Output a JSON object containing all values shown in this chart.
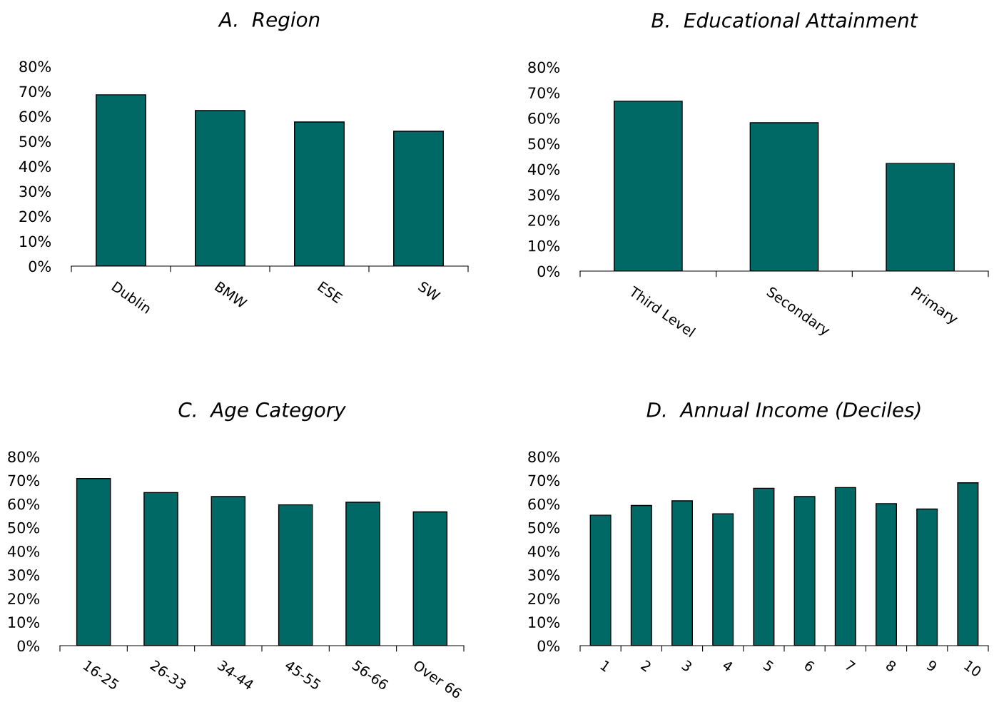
{
  "chart_data": [
    {
      "type": "bar",
      "title": "A.  Region",
      "categories": [
        "Dublin",
        "BMW",
        "ESE",
        "SW"
      ],
      "values": [
        68.6,
        62.3,
        57.7,
        54.0
      ],
      "color": "#006865",
      "ylim": [
        0,
        80
      ],
      "yticks": [
        {
          "value": 0,
          "label": "0%"
        },
        {
          "value": 10,
          "label": "10%"
        },
        {
          "value": 20,
          "label": "20%"
        },
        {
          "value": 30,
          "label": "30%"
        },
        {
          "value": 40,
          "label": "40%"
        },
        {
          "value": 50,
          "label": "50%"
        },
        {
          "value": 60,
          "label": "60%"
        },
        {
          "value": 70,
          "label": "70%"
        },
        {
          "value": 80,
          "label": "80%"
        }
      ],
      "grid": false,
      "legend": false
    },
    {
      "type": "bar",
      "title": "B.  Educational Attainment",
      "categories": [
        "Third Level",
        "Secondary",
        "Primary"
      ],
      "values": [
        66.6,
        58.2,
        42.2
      ],
      "color": "#006865",
      "ylim": [
        0,
        80
      ],
      "yticks": [
        {
          "value": 0,
          "label": "0%"
        },
        {
          "value": 10,
          "label": "10%"
        },
        {
          "value": 20,
          "label": "20%"
        },
        {
          "value": 30,
          "label": "30%"
        },
        {
          "value": 40,
          "label": "40%"
        },
        {
          "value": 50,
          "label": "50%"
        },
        {
          "value": 60,
          "label": "60%"
        },
        {
          "value": 70,
          "label": "70%"
        },
        {
          "value": 80,
          "label": "80%"
        }
      ],
      "grid": false,
      "legend": false
    },
    {
      "type": "bar",
      "title": "C.  Age Category",
      "categories": [
        "16-25",
        "26-33",
        "34-44",
        "45-55",
        "56-66",
        "Over 66"
      ],
      "values": [
        70.7,
        64.8,
        63.1,
        59.6,
        60.7,
        56.6
      ],
      "color": "#006865",
      "ylim": [
        0,
        80
      ],
      "yticks": [
        {
          "value": 0,
          "label": "0%"
        },
        {
          "value": 10,
          "label": "10%"
        },
        {
          "value": 20,
          "label": "20%"
        },
        {
          "value": 30,
          "label": "30%"
        },
        {
          "value": 40,
          "label": "40%"
        },
        {
          "value": 50,
          "label": "50%"
        },
        {
          "value": 60,
          "label": "60%"
        },
        {
          "value": 70,
          "label": "70%"
        },
        {
          "value": 80,
          "label": "80%"
        }
      ],
      "grid": false,
      "legend": false
    },
    {
      "type": "bar",
      "title": "D.  Annual Income (Deciles)",
      "categories": [
        "1",
        "2",
        "3",
        "4",
        "5",
        "6",
        "7",
        "8",
        "9",
        "10"
      ],
      "values": [
        55.2,
        59.3,
        61.3,
        55.8,
        66.6,
        63.1,
        66.9,
        60.1,
        57.8,
        68.9
      ],
      "color": "#006865",
      "ylim": [
        0,
        80
      ],
      "yticks": [
        {
          "value": 0,
          "label": "0%"
        },
        {
          "value": 10,
          "label": "10%"
        },
        {
          "value": 20,
          "label": "20%"
        },
        {
          "value": 30,
          "label": "30%"
        },
        {
          "value": 40,
          "label": "40%"
        },
        {
          "value": 50,
          "label": "50%"
        },
        {
          "value": 60,
          "label": "60%"
        },
        {
          "value": 70,
          "label": "70%"
        },
        {
          "value": 80,
          "label": "80%"
        }
      ],
      "grid": false,
      "legend": false
    }
  ]
}
